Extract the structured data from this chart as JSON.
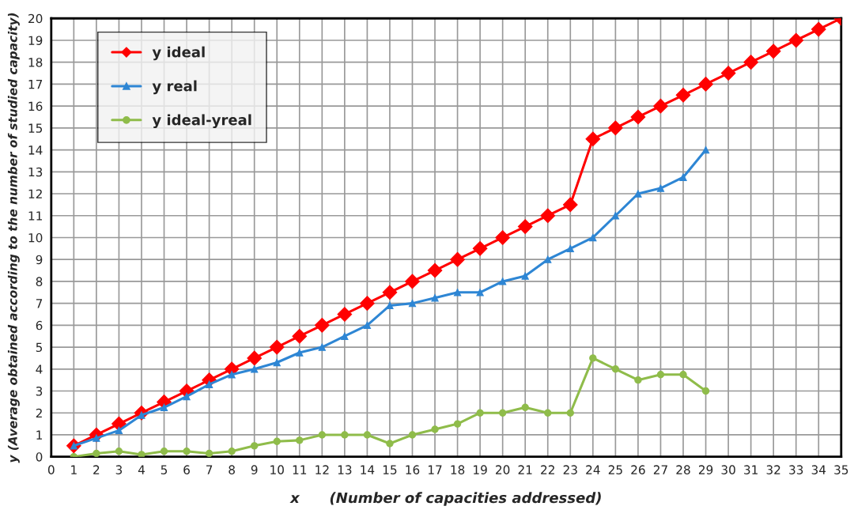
{
  "chart_data": {
    "type": "line",
    "xlabel": "x      (Number of capacities addressed)",
    "ylabel": "y (Average obtained according to the number of studied capacity)",
    "xlim": [
      0,
      35
    ],
    "xticks": [
      0,
      1,
      2,
      3,
      4,
      5,
      6,
      7,
      8,
      9,
      10,
      11,
      12,
      13,
      14,
      15,
      16,
      17,
      18,
      19,
      20,
      21,
      22,
      23,
      24,
      25,
      26,
      27,
      28,
      29,
      30,
      31,
      32,
      33,
      34,
      35
    ],
    "ylim": [
      0,
      20
    ],
    "yticks": [
      0,
      1,
      2,
      3,
      4,
      5,
      6,
      7,
      8,
      9,
      10,
      11,
      12,
      13,
      14,
      15,
      16,
      17,
      18,
      19,
      20
    ],
    "grid": true,
    "legend": "top left",
    "line_style": "solid",
    "series": [
      {
        "name": "y ideal",
        "color": "#ff0000",
        "marker": "diamond",
        "x": [
          1,
          2,
          3,
          4,
          5,
          6,
          7,
          8,
          9,
          10,
          11,
          12,
          13,
          14,
          15,
          16,
          17,
          18,
          19,
          20,
          21,
          22,
          23,
          24,
          25,
          26,
          27,
          28,
          29,
          30,
          31,
          32,
          33,
          34,
          35
        ],
        "values": [
          0.5,
          1,
          1.5,
          2,
          2.5,
          3,
          3.5,
          4,
          4.5,
          5,
          5.5,
          6,
          6.5,
          7,
          7.5,
          8,
          8.5,
          9,
          9.5,
          10,
          10.5,
          11,
          11.5,
          14.5,
          15,
          15.5,
          16,
          16.5,
          17,
          17.5,
          18,
          18.5,
          19,
          19.5,
          20
        ]
      },
      {
        "name": "y real",
        "color": "#2e86d4",
        "marker": "triangle",
        "x": [
          1,
          2,
          3,
          4,
          5,
          6,
          7,
          8,
          9,
          10,
          11,
          12,
          13,
          14,
          15,
          16,
          17,
          18,
          19,
          20,
          21,
          22,
          23,
          24,
          25,
          26,
          27,
          28,
          29
        ],
        "values": [
          0.5,
          0.85,
          1.2,
          1.9,
          2.25,
          2.75,
          3.3,
          3.75,
          4,
          4.3,
          4.75,
          5,
          5.5,
          6,
          6.9,
          7,
          7.25,
          7.5,
          7.5,
          8,
          8.25,
          9,
          9.5,
          10,
          11,
          12,
          12.25,
          12.75,
          14
        ]
      },
      {
        "name": "y ideal-yreal",
        "color": "#8fbc4a",
        "marker": "circle",
        "x": [
          1,
          2,
          3,
          4,
          5,
          6,
          7,
          8,
          9,
          10,
          11,
          12,
          13,
          14,
          15,
          16,
          17,
          18,
          19,
          20,
          21,
          22,
          23,
          24,
          25,
          26,
          27,
          28,
          29
        ],
        "values": [
          0,
          0.15,
          0.25,
          0.1,
          0.25,
          0.25,
          0.15,
          0.25,
          0.5,
          0.7,
          0.75,
          1,
          1,
          1,
          0.6,
          1,
          1.25,
          1.5,
          2,
          2,
          2.25,
          2,
          2,
          4.5,
          4,
          3.5,
          3.75,
          3.75,
          3
        ]
      }
    ]
  }
}
